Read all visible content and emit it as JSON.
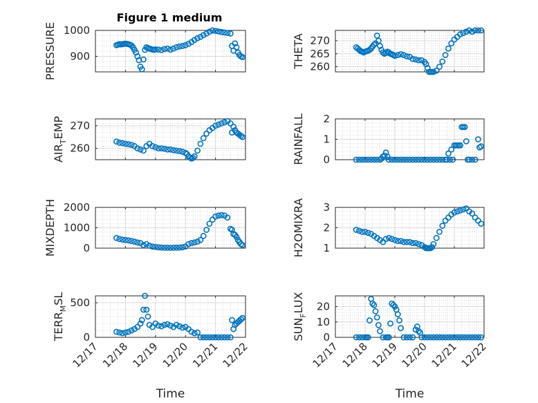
{
  "figure": {
    "title": "Figure 1 medium"
  },
  "style": {
    "marker_color": "#0072BD",
    "axis_color": "#262626"
  },
  "x_axis": {
    "label": "Time",
    "ticks": [
      "12/17",
      "12/18",
      "12/19",
      "12/20",
      "12/21",
      "12/22"
    ],
    "range_days": [
      17,
      22
    ]
  },
  "chart_data": [
    {
      "id": "pressure",
      "type": "scatter",
      "ylabel": "PRESSURE",
      "ylim": [
        840,
        1000
      ],
      "yticks": [
        900,
        1000
      ],
      "x": [
        17.7,
        17.75,
        17.8,
        17.85,
        17.9,
        17.95,
        18.0,
        18.05,
        18.1,
        18.15,
        18.2,
        18.25,
        18.3,
        18.35,
        18.4,
        18.45,
        18.5,
        18.55,
        18.6,
        18.65,
        18.7,
        18.75,
        18.8,
        18.85,
        18.9,
        18.95,
        19.0,
        19.1,
        19.2,
        19.3,
        19.4,
        19.5,
        19.6,
        19.7,
        19.8,
        19.9,
        20.0,
        20.1,
        20.2,
        20.3,
        20.4,
        20.5,
        20.6,
        20.7,
        20.8,
        20.9,
        21.0,
        21.1,
        21.2,
        21.3,
        21.4,
        21.5,
        21.55,
        21.6,
        21.65,
        21.7,
        21.75,
        21.8,
        21.85,
        21.9
      ],
      "y": [
        943,
        945,
        947,
        946,
        947,
        948,
        949,
        948,
        947,
        945,
        942,
        935,
        925,
        915,
        900,
        885,
        860,
        850,
        888,
        925,
        935,
        932,
        930,
        928,
        926,
        925,
        927,
        926,
        924,
        928,
        930,
        926,
        930,
        935,
        938,
        940,
        943,
        948,
        955,
        963,
        970,
        975,
        982,
        988,
        995,
        1000,
        998,
        996,
        994,
        992,
        990,
        988,
        940,
        922,
        950,
        935,
        915,
        905,
        900,
        897
      ]
    },
    {
      "id": "theta",
      "type": "scatter",
      "ylabel": "THETA",
      "ylim": [
        258,
        274
      ],
      "yticks": [
        260,
        265,
        270
      ],
      "x": [
        17.7,
        17.75,
        17.8,
        17.85,
        17.9,
        17.95,
        18.0,
        18.05,
        18.1,
        18.15,
        18.2,
        18.25,
        18.3,
        18.35,
        18.4,
        18.45,
        18.5,
        18.55,
        18.6,
        18.65,
        18.7,
        18.75,
        18.8,
        18.85,
        18.9,
        18.95,
        19.0,
        19.1,
        19.2,
        19.3,
        19.4,
        19.5,
        19.6,
        19.7,
        19.8,
        19.9,
        20.0,
        20.05,
        20.1,
        20.15,
        20.2,
        20.25,
        20.3,
        20.4,
        20.5,
        20.6,
        20.7,
        20.8,
        20.9,
        21.0,
        21.1,
        21.2,
        21.3,
        21.4,
        21.5,
        21.6,
        21.7,
        21.8,
        21.9
      ],
      "y": [
        267.5,
        267,
        266.5,
        266,
        265.8,
        265.5,
        265.8,
        266,
        266.2,
        266.5,
        267,
        267.8,
        268.5,
        269,
        272,
        270,
        268,
        266.5,
        265.5,
        265,
        265.3,
        265.8,
        265.5,
        265,
        264.8,
        264.5,
        264.2,
        264.5,
        264.8,
        264.5,
        264,
        263.8,
        263,
        262.8,
        262.5,
        262.5,
        261.8,
        261,
        259.5,
        258,
        257.5,
        257.2,
        257.5,
        258.5,
        260,
        262,
        264.5,
        267,
        269,
        270.5,
        271.5,
        272.5,
        273,
        273.5,
        274,
        273.5,
        274,
        274.2,
        274
      ]
    },
    {
      "id": "air_temp",
      "type": "scatter",
      "ylabel": "AIR",
      "ylabel_sub": "T",
      "ylabel_suffix": "EMP",
      "ylim": [
        255,
        273
      ],
      "yticks": [
        260,
        270
      ],
      "x": [
        17.7,
        17.8,
        17.9,
        18.0,
        18.1,
        18.2,
        18.3,
        18.4,
        18.5,
        18.6,
        18.7,
        18.8,
        18.9,
        19.0,
        19.1,
        19.2,
        19.3,
        19.4,
        19.5,
        19.6,
        19.7,
        19.8,
        19.9,
        20.0,
        20.05,
        20.1,
        20.15,
        20.2,
        20.25,
        20.3,
        20.4,
        20.5,
        20.6,
        20.7,
        20.8,
        20.9,
        21.0,
        21.1,
        21.2,
        21.3,
        21.4,
        21.5,
        21.55,
        21.6,
        21.65,
        21.7,
        21.75,
        21.8,
        21.85,
        21.9
      ],
      "y": [
        263,
        262.5,
        262.3,
        262,
        261.8,
        261.5,
        261,
        260,
        259.5,
        259,
        261,
        262,
        261,
        260.5,
        260,
        260,
        259.8,
        259.5,
        259.5,
        259.2,
        259,
        258.8,
        258.5,
        258,
        257.5,
        256.5,
        256,
        255.5,
        255.8,
        256.5,
        259,
        262,
        264.5,
        266.5,
        268,
        269,
        270,
        270.5,
        271,
        271.5,
        272,
        271,
        267,
        269.5,
        268,
        267,
        266.5,
        266,
        265.5,
        265
      ]
    },
    {
      "id": "rainfall",
      "type": "scatter",
      "ylabel": "RAINFALL",
      "ylim": [
        0,
        2
      ],
      "yticks": [
        0,
        1,
        2
      ],
      "x": [
        17.7,
        17.8,
        17.9,
        18.0,
        18.1,
        18.2,
        18.3,
        18.4,
        18.5,
        18.55,
        18.6,
        18.65,
        18.7,
        18.75,
        18.8,
        18.9,
        19.0,
        19.1,
        19.2,
        19.3,
        19.4,
        19.5,
        19.6,
        19.7,
        19.8,
        19.9,
        20.0,
        20.1,
        20.2,
        20.3,
        20.4,
        20.5,
        20.6,
        20.7,
        20.75,
        20.8,
        20.85,
        20.9,
        20.95,
        21.0,
        21.05,
        21.1,
        21.15,
        21.2,
        21.25,
        21.3,
        21.35,
        21.4,
        21.45,
        21.5,
        21.6,
        21.7,
        21.8,
        21.85,
        21.9
      ],
      "y": [
        0,
        0,
        0,
        0,
        0,
        0,
        0,
        0,
        0,
        0.05,
        0.15,
        0.2,
        0.35,
        0.15,
        0,
        0,
        0,
        0,
        0,
        0,
        0,
        0,
        0,
        0,
        0,
        0,
        0,
        0,
        0,
        0,
        0,
        0,
        0,
        0,
        0,
        0.3,
        0,
        0.5,
        0,
        0.7,
        0.7,
        0.7,
        0.7,
        0.7,
        1.6,
        1.6,
        1.6,
        0.9,
        0,
        0,
        0,
        0,
        1,
        0.6,
        0.65
      ]
    },
    {
      "id": "mixdepth",
      "type": "scatter",
      "ylabel": "MIXDEPTH",
      "ylim": [
        0,
        2000
      ],
      "yticks": [
        0,
        1000,
        2000
      ],
      "x": [
        17.7,
        17.8,
        17.9,
        18.0,
        18.1,
        18.2,
        18.3,
        18.4,
        18.5,
        18.6,
        18.7,
        18.8,
        18.9,
        19.0,
        19.1,
        19.2,
        19.3,
        19.4,
        19.5,
        19.6,
        19.7,
        19.8,
        19.9,
        20.0,
        20.1,
        20.2,
        20.3,
        20.4,
        20.5,
        20.6,
        20.7,
        20.8,
        20.9,
        21.0,
        21.1,
        21.2,
        21.3,
        21.4,
        21.5,
        21.55,
        21.6,
        21.65,
        21.7,
        21.75,
        21.8,
        21.85,
        21.9
      ],
      "y": [
        500,
        450,
        420,
        400,
        380,
        350,
        320,
        280,
        250,
        150,
        200,
        120,
        80,
        60,
        40,
        30,
        20,
        20,
        15,
        20,
        25,
        30,
        40,
        80,
        200,
        250,
        280,
        320,
        400,
        600,
        900,
        1200,
        1400,
        1550,
        1600,
        1620,
        1600,
        1500,
        950,
        900,
        700,
        650,
        550,
        400,
        300,
        200,
        150
      ]
    },
    {
      "id": "h2omixra",
      "type": "scatter",
      "ylabel": "H2OMIXRA",
      "ylim": [
        1,
        3
      ],
      "yticks": [
        1,
        2,
        3
      ],
      "x": [
        17.7,
        17.8,
        17.9,
        18.0,
        18.1,
        18.2,
        18.3,
        18.4,
        18.5,
        18.6,
        18.7,
        18.8,
        18.9,
        19.0,
        19.1,
        19.2,
        19.3,
        19.4,
        19.5,
        19.6,
        19.7,
        19.8,
        19.9,
        20.0,
        20.05,
        20.1,
        20.15,
        20.2,
        20.25,
        20.3,
        20.4,
        20.5,
        20.6,
        20.7,
        20.8,
        20.9,
        21.0,
        21.1,
        21.2,
        21.3,
        21.4,
        21.5,
        21.6,
        21.7,
        21.8,
        21.9
      ],
      "y": [
        1.9,
        1.85,
        1.8,
        1.8,
        1.75,
        1.7,
        1.6,
        1.5,
        1.4,
        1.3,
        1.45,
        1.5,
        1.45,
        1.4,
        1.35,
        1.35,
        1.3,
        1.3,
        1.3,
        1.25,
        1.25,
        1.2,
        1.15,
        1.05,
        1.0,
        1.0,
        1.0,
        1.0,
        1.05,
        1.2,
        1.5,
        1.8,
        2.1,
        2.35,
        2.5,
        2.65,
        2.75,
        2.8,
        2.85,
        2.9,
        2.95,
        2.8,
        2.7,
        2.5,
        2.35,
        2.2
      ]
    },
    {
      "id": "terr_msl",
      "type": "scatter",
      "ylabel": "TERR",
      "ylabel_sub": "M",
      "ylabel_suffix": "SL",
      "ylim": [
        0,
        600
      ],
      "yticks": [
        0,
        500
      ],
      "x": [
        17.7,
        17.8,
        17.9,
        18.0,
        18.1,
        18.2,
        18.3,
        18.4,
        18.5,
        18.55,
        18.6,
        18.65,
        18.7,
        18.75,
        18.8,
        18.9,
        19.0,
        19.1,
        19.2,
        19.3,
        19.4,
        19.5,
        19.6,
        19.7,
        19.8,
        19.9,
        20.0,
        20.1,
        20.2,
        20.3,
        20.4,
        20.5,
        20.6,
        20.7,
        20.8,
        20.9,
        21.0,
        21.1,
        21.2,
        21.3,
        21.4,
        21.5,
        21.55,
        21.6,
        21.65,
        21.7,
        21.75,
        21.8,
        21.85,
        21.9
      ],
      "y": [
        80,
        70,
        60,
        70,
        80,
        100,
        120,
        150,
        200,
        250,
        400,
        620,
        400,
        300,
        180,
        150,
        200,
        170,
        160,
        180,
        190,
        170,
        150,
        180,
        160,
        140,
        150,
        120,
        80,
        60,
        70,
        0,
        0,
        0,
        0,
        0,
        0,
        0,
        0,
        0,
        0,
        0,
        250,
        120,
        180,
        200,
        220,
        240,
        260,
        280
      ]
    },
    {
      "id": "sun_flux",
      "type": "scatter",
      "ylabel": "SUN",
      "ylabel_sub": "F",
      "ylabel_suffix": "LUX",
      "ylim": [
        0,
        27
      ],
      "yticks": [
        0,
        10,
        20
      ],
      "x": [
        17.7,
        17.8,
        17.9,
        18.0,
        18.05,
        18.1,
        18.15,
        18.2,
        18.25,
        18.3,
        18.35,
        18.4,
        18.45,
        18.5,
        18.6,
        18.7,
        18.75,
        18.8,
        18.85,
        18.9,
        18.95,
        19.0,
        19.05,
        19.1,
        19.15,
        19.2,
        19.3,
        19.4,
        19.5,
        19.6,
        19.7,
        19.75,
        19.8,
        19.85,
        19.9,
        20.0,
        20.1,
        20.2,
        20.3,
        20.4,
        20.5,
        20.6,
        20.7,
        20.8,
        20.9,
        21.0,
        21.1,
        21.2,
        21.3,
        21.4,
        21.5,
        21.6,
        21.7,
        21.8,
        21.9
      ],
      "y": [
        0,
        0,
        0,
        0,
        0,
        0,
        11,
        25,
        22,
        21,
        17,
        13,
        8,
        4,
        0,
        0,
        0,
        0,
        9,
        22,
        21,
        20,
        18,
        15,
        11,
        6,
        0,
        0,
        0,
        0,
        5,
        7,
        4,
        3,
        0,
        0,
        0,
        0,
        0,
        0,
        0,
        0,
        0,
        0,
        0,
        0,
        0,
        0,
        0,
        0,
        0,
        0,
        0,
        0,
        0
      ]
    }
  ]
}
